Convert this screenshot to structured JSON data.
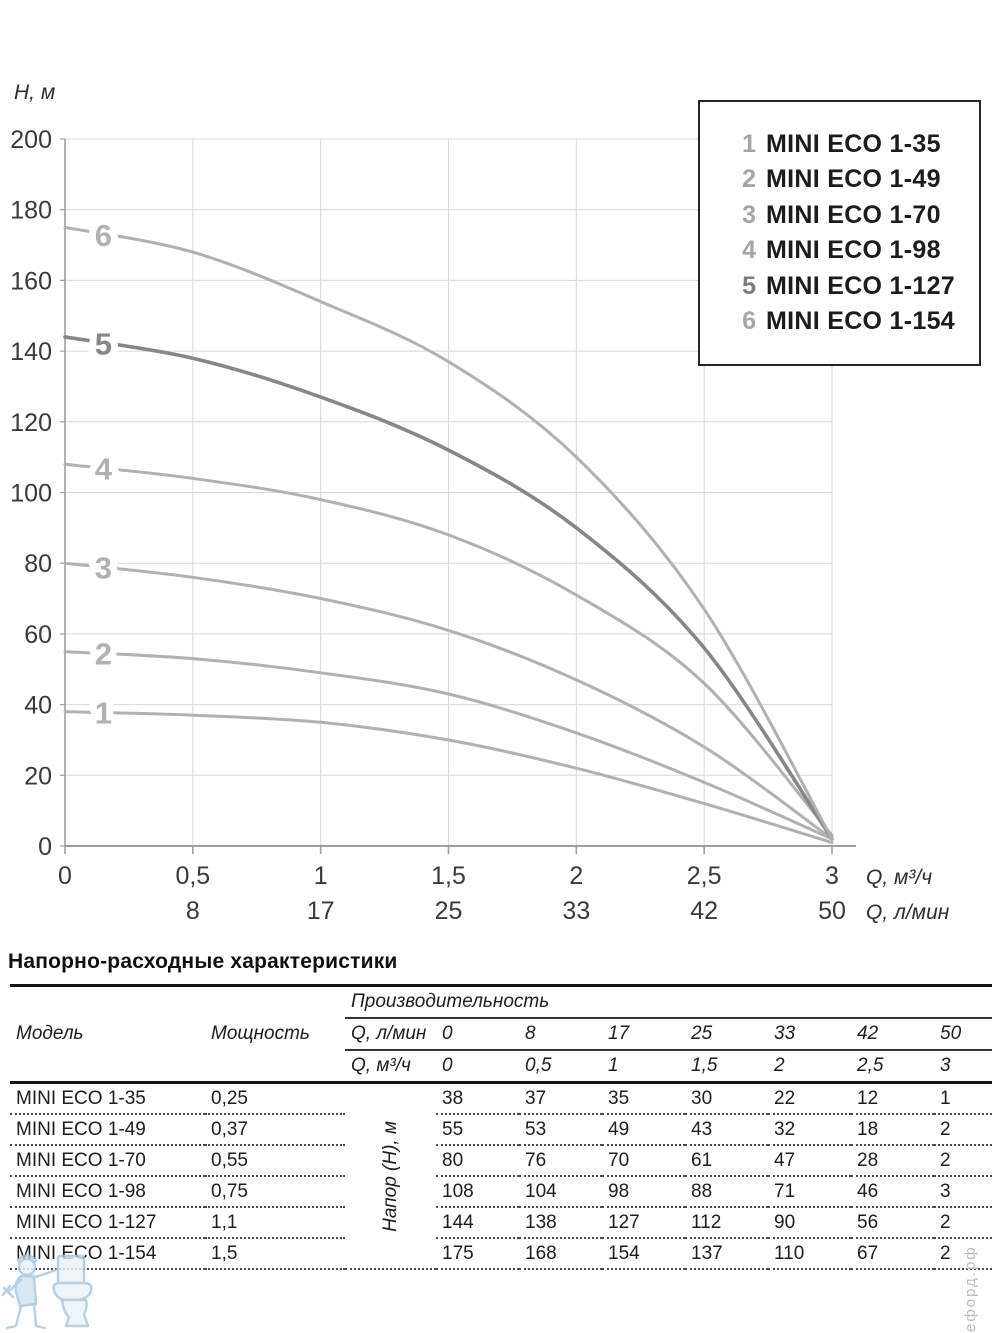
{
  "chart": {
    "ylabel": "Н, м",
    "xlabel_primary": "Q, м³/ч",
    "xlabel_secondary": "Q, л/мин",
    "ylim": [
      0,
      200
    ],
    "ytick_step": 20,
    "xticks": [
      "0",
      "0,5",
      "1",
      "1,5",
      "2",
      "2,5",
      "3"
    ],
    "xticks_secondary": [
      "",
      "8",
      "17",
      "25",
      "33",
      "42",
      "50"
    ],
    "grid": true,
    "colors": {
      "grid": "#d8d8d8",
      "axis": "#9f9f9f",
      "tick_text": "#3a3a3a",
      "curve": "#b1b1b1",
      "curve_emphasis": "#878787",
      "legend_num": "#a5a5a5",
      "legend_num_emphasis": "#7d7d7d"
    }
  },
  "chart_data": {
    "type": "line",
    "x": [
      0,
      0.5,
      1,
      1.5,
      2,
      2.5,
      3
    ],
    "x_secondary": [
      0,
      8,
      17,
      25,
      33,
      42,
      50
    ],
    "xlabel": "Q, м³/ч",
    "xlabel_secondary": "Q, л/мин",
    "ylabel": "Н, м",
    "ylim": [
      0,
      200
    ],
    "legend_position": "top-right",
    "series": [
      {
        "label": "1",
        "name": "MINI ECO 1-35",
        "values": [
          38,
          37,
          35,
          30,
          22,
          12,
          1
        ]
      },
      {
        "label": "2",
        "name": "MINI ECO 1-49",
        "values": [
          55,
          53,
          49,
          43,
          32,
          18,
          2
        ]
      },
      {
        "label": "3",
        "name": "MINI ECO 1-70",
        "values": [
          80,
          76,
          70,
          61,
          47,
          28,
          2
        ]
      },
      {
        "label": "4",
        "name": "MINI ECO 1-98",
        "values": [
          108,
          104,
          98,
          88,
          71,
          46,
          3
        ]
      },
      {
        "label": "5",
        "name": "MINI ECO 1-127",
        "values": [
          144,
          138,
          127,
          112,
          90,
          56,
          2
        ],
        "emphasis": true
      },
      {
        "label": "6",
        "name": "MINI ECO 1-154",
        "values": [
          175,
          168,
          154,
          137,
          110,
          67,
          2
        ]
      }
    ]
  },
  "table": {
    "title": "Напорно-расходные характеристики",
    "col_model": "Модель",
    "col_power": "Мощность",
    "group_header": "Производительность",
    "row_lmin_label": "Q, л/мин",
    "row_lmin": [
      "0",
      "8",
      "17",
      "25",
      "33",
      "42",
      "50"
    ],
    "row_m3h_label": "Q, м³/ч",
    "row_m3h": [
      "0",
      "0,5",
      "1",
      "1,5",
      "2",
      "2,5",
      "3"
    ],
    "head_col_label": "Напор (Н), м",
    "rows": [
      {
        "model": "MINI ECO 1-35",
        "power": "0,25",
        "values": [
          "38",
          "37",
          "35",
          "30",
          "22",
          "12",
          "1"
        ]
      },
      {
        "model": "MINI ECO 1-49",
        "power": "0,37",
        "values": [
          "55",
          "53",
          "49",
          "43",
          "32",
          "18",
          "2"
        ]
      },
      {
        "model": "MINI ECO 1-70",
        "power": "0,55",
        "values": [
          "80",
          "76",
          "70",
          "61",
          "47",
          "28",
          "2"
        ]
      },
      {
        "model": "MINI ECO 1-98",
        "power": "0,75",
        "values": [
          "108",
          "104",
          "98",
          "88",
          "71",
          "46",
          "3"
        ]
      },
      {
        "model": "MINI ECO 1-127",
        "power": "1,1",
        "values": [
          "144",
          "138",
          "127",
          "112",
          "90",
          "56",
          "2"
        ]
      },
      {
        "model": "MINI ECO 1-154",
        "power": "1,5",
        "values": [
          "175",
          "168",
          "154",
          "137",
          "110",
          "67",
          "2"
        ]
      }
    ]
  },
  "watermark": {
    "logo_name": "plumber-toilet-logo",
    "site_text": "ефорд.рф"
  }
}
